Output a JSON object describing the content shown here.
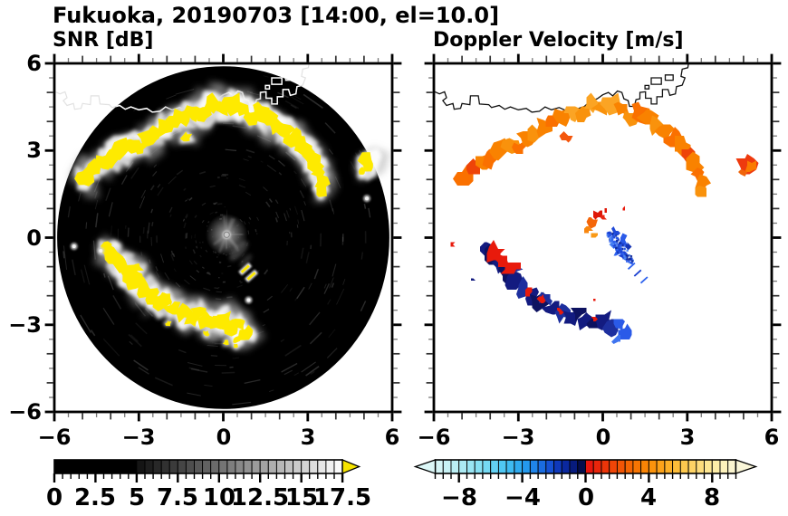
{
  "title": "Fukuoka, 20190703 [14:00, el=10.0]",
  "panels": {
    "snr": {
      "subtitle": "SNR [dB]",
      "x_tick_labels": [
        "−6",
        "−3",
        "0",
        "3",
        "6"
      ],
      "y_tick_labels": [
        "6",
        "3",
        "0",
        "−3",
        "−6"
      ],
      "colorbar_labels": [
        "0",
        "2.5",
        "5",
        "7.5",
        "10",
        "12.5",
        "15",
        "17.5"
      ]
    },
    "vel": {
      "subtitle": "Doppler Velocity [m/s]",
      "x_tick_labels": [
        "−6",
        "−3",
        "0",
        "3",
        "6"
      ],
      "colorbar_labels": [
        "−8",
        "−4",
        "0",
        "4",
        "8"
      ]
    }
  },
  "chart_data": {
    "type": "heatmap",
    "subtype": "radar-ppi-pair",
    "site": "Fukuoka",
    "date_label": "20190703",
    "time_label": "14:00",
    "elevation_label": "el=10.0",
    "x_range": [
      -6,
      6
    ],
    "y_range": [
      -6,
      6
    ],
    "major_ticks": [
      -6,
      -3,
      0,
      3,
      6
    ],
    "minor_tick_step": 0.5,
    "scan_circle_radius": 5.9,
    "panels": [
      {
        "name": "snr",
        "label": "SNR [dB]",
        "background": "#000000",
        "colorbar": {
          "range": [
            0,
            17.5
          ],
          "cell_step": 0.5,
          "solid_black_until": 5,
          "tick_values": [
            0,
            2.5,
            5,
            7.5,
            10,
            12.5,
            15,
            17.5
          ],
          "ramp": [
            "#101010",
            "#ffffff"
          ],
          "overflow_color": "#f6e400",
          "overflow_side": "right"
        }
      },
      {
        "name": "velocity",
        "label": "Doppler Velocity [m/s]",
        "background": "#ffffff",
        "colorbar": {
          "range": [
            -9.5,
            9.5
          ],
          "cell_step": 0.5,
          "tick_values": [
            -8,
            -4,
            0,
            4,
            8
          ],
          "underflow_color": "#dcf7f7",
          "overflow_color": "#faf6d8",
          "neg_stops": [
            [
              -9.5,
              "#dcf7f7"
            ],
            [
              -8,
              "#b4edf3"
            ],
            [
              -6.5,
              "#7eddf3"
            ],
            [
              -5,
              "#46c3f3"
            ],
            [
              -4,
              "#27a3ef"
            ],
            [
              -3,
              "#1c79e6"
            ],
            [
              -2.2,
              "#144ed2"
            ],
            [
              -1.5,
              "#0c2eae"
            ],
            [
              -0.8,
              "#071c82"
            ],
            [
              -0.3,
              "#040e52"
            ],
            [
              0,
              "#03082e"
            ]
          ],
          "pos_stops": [
            [
              0,
              "#e60e0e"
            ],
            [
              1,
              "#ea2d0a"
            ],
            [
              2,
              "#f04d06"
            ],
            [
              3,
              "#f66d02"
            ],
            [
              4,
              "#fa8b06"
            ],
            [
              5,
              "#fca91f"
            ],
            [
              6,
              "#fdc342"
            ],
            [
              7,
              "#fed870"
            ],
            [
              8,
              "#feec9e"
            ],
            [
              9,
              "#fcf4c6"
            ],
            [
              9.5,
              "#faf6d8"
            ]
          ]
        }
      }
    ],
    "features": {
      "snr_yellow": "#feea00",
      "vel_palette": [
        "#f98200",
        "#fa7000",
        "#f9920c",
        "#f85c04",
        "#fba424",
        "#ee4408"
      ],
      "navy_palette": [
        "#131b80",
        "#0d1260",
        "#1d2f9e",
        "#2443b8",
        "#2a5ae8",
        "#3f74f0"
      ],
      "red": "#e81a0c",
      "upper_arc": [
        [
          -4.95,
          2.05,
          0.3,
          1
        ],
        [
          -4.6,
          2.35,
          0.26,
          5
        ],
        [
          -4.25,
          2.6,
          0.24,
          0
        ],
        [
          -3.95,
          2.75,
          0.3,
          1
        ],
        [
          -3.6,
          3.05,
          0.34,
          0
        ],
        [
          -3.25,
          3.2,
          0.26,
          2
        ],
        [
          -2.95,
          3.1,
          0.22,
          1
        ],
        [
          -2.7,
          3.45,
          0.3,
          0
        ],
        [
          -2.4,
          3.6,
          0.26,
          2
        ],
        [
          -2.1,
          3.8,
          0.3,
          0
        ],
        [
          -1.75,
          4.0,
          0.26,
          1
        ],
        [
          -1.45,
          4.15,
          0.3,
          0
        ],
        [
          -1.1,
          4.35,
          0.26,
          4
        ],
        [
          -0.75,
          4.3,
          0.3,
          2
        ],
        [
          -0.4,
          4.55,
          0.3,
          4
        ],
        [
          -0.05,
          4.5,
          0.26,
          2
        ],
        [
          0.35,
          4.55,
          0.34,
          4
        ],
        [
          0.7,
          4.45,
          0.26,
          0
        ],
        [
          1.0,
          4.15,
          0.22,
          2
        ],
        [
          1.3,
          4.35,
          0.3,
          1
        ],
        [
          1.6,
          4.1,
          0.3,
          0
        ],
        [
          1.9,
          3.85,
          0.26,
          2
        ],
        [
          2.2,
          3.65,
          0.3,
          0
        ],
        [
          2.5,
          3.4,
          0.3,
          1
        ],
        [
          2.8,
          3.15,
          0.3,
          0
        ],
        [
          3.05,
          2.85,
          0.26,
          5
        ],
        [
          3.25,
          2.55,
          0.26,
          0
        ],
        [
          3.4,
          2.2,
          0.22,
          1
        ],
        [
          3.5,
          1.85,
          0.22,
          0
        ],
        [
          3.45,
          1.55,
          0.18,
          2
        ]
      ],
      "isolated": [
        [
          -1.3,
          3.45,
          0.17
        ],
        [
          5.15,
          2.55,
          0.3
        ],
        [
          4.95,
          2.25,
          0.13
        ]
      ],
      "isolated_vel_colors": [
        "#f4560c",
        "#ee3a0e",
        "#f0640a"
      ],
      "lower_arc": [
        [
          -4.1,
          -0.35,
          0.2,
          0
        ],
        [
          -3.9,
          -0.6,
          0.28,
          1
        ],
        [
          -3.65,
          -0.9,
          0.28,
          0
        ],
        [
          -3.4,
          -1.2,
          0.32,
          1
        ],
        [
          -3.1,
          -1.05,
          0.2,
          2
        ],
        [
          -3.15,
          -1.5,
          0.28,
          0
        ],
        [
          -2.85,
          -1.75,
          0.28,
          2
        ],
        [
          -2.55,
          -1.95,
          0.26,
          0
        ],
        [
          -2.3,
          -2.2,
          0.28,
          1
        ],
        [
          -2.0,
          -2.1,
          0.2,
          2
        ],
        [
          -1.75,
          -2.45,
          0.28,
          0
        ],
        [
          -1.45,
          -2.6,
          0.26,
          2
        ],
        [
          -1.15,
          -2.75,
          0.28,
          0
        ],
        [
          -0.85,
          -2.6,
          0.24,
          1
        ],
        [
          -0.55,
          -2.85,
          0.28,
          0
        ],
        [
          -0.25,
          -2.95,
          0.26,
          1
        ],
        [
          0.05,
          -2.85,
          0.28,
          0
        ],
        [
          0.35,
          -3.1,
          0.28,
          2
        ],
        [
          0.6,
          -2.95,
          0.2,
          4
        ],
        [
          0.8,
          -3.3,
          0.26,
          4
        ],
        [
          0.5,
          -3.5,
          0.16,
          5
        ]
      ],
      "lower_arc_red": [
        [
          -3.85,
          -0.5,
          0.3
        ],
        [
          -3.6,
          -0.8,
          0.24
        ],
        [
          -3.35,
          -1.1,
          0.2
        ],
        [
          -3.05,
          -0.95,
          0.12
        ],
        [
          -2.62,
          -1.85,
          0.13
        ],
        [
          -2.2,
          -2.1,
          0.12
        ],
        [
          -1.5,
          -2.52,
          0.1
        ],
        [
          -0.3,
          -2.78,
          0.07
        ]
      ],
      "snr_dots_yellow": [
        [
          -0.6,
          -3.3,
          0.1
        ],
        [
          0.1,
          -3.62,
          0.1
        ],
        [
          -1.95,
          -2.95,
          0.09
        ],
        [
          0.45,
          -3.72,
          0.08
        ]
      ],
      "snr_dots_gray": [
        [
          -5.3,
          -0.3
        ],
        [
          -4.35,
          -0.45
        ],
        [
          0.9,
          -2.15
        ],
        [
          5.1,
          1.35
        ]
      ],
      "snr_dashes": [
        [
          0.78,
          -1.08
        ],
        [
          1.0,
          -1.32
        ]
      ],
      "vel_red_dots": [
        [
          -5.35,
          -0.25,
          0.09
        ],
        [
          -0.29,
          -2.12,
          0.06
        ],
        [
          0.74,
          1.0,
          0.05
        ]
      ],
      "vel_navy_dots": [
        [
          -4.6,
          -1.45,
          0.06
        ]
      ],
      "warm_cluster": [
        [
          -0.2,
          0.8,
          0.13,
          "#df1808"
        ],
        [
          -0.38,
          0.52,
          0.15,
          "#f4660a"
        ],
        [
          -0.52,
          0.28,
          0.13,
          "#f8860e"
        ],
        [
          -0.32,
          0.08,
          0.11,
          "#fa9a16"
        ],
        [
          0.02,
          0.68,
          0.1,
          "#e82410"
        ],
        [
          0.1,
          0.92,
          0.07,
          "#df1808"
        ]
      ],
      "blue_cluster_polys": [
        [
          0.45,
          0.18,
          0.14,
          "#1f49d8"
        ],
        [
          0.7,
          -0.08,
          0.16,
          "#2a5ae8"
        ],
        [
          0.55,
          -0.45,
          0.15,
          "#2f63ee"
        ],
        [
          0.75,
          -0.62,
          0.12,
          "#1a3fd0"
        ],
        [
          0.35,
          -0.25,
          0.1,
          "#4f88f4"
        ],
        [
          0.88,
          -0.3,
          0.09,
          "#1634b4"
        ]
      ],
      "blue_speckle": {
        "cx": 0.58,
        "cy": -0.3,
        "rx": 0.42,
        "ry": 0.6,
        "count": 110,
        "colors": [
          "#1a3fd0",
          "#2f63ee",
          "#4f88f4",
          "#0c2596",
          "#2553e4"
        ]
      },
      "blue_dashes": [
        [
          1.02,
          -0.98
        ],
        [
          1.24,
          -1.22
        ],
        [
          1.47,
          -1.46
        ]
      ],
      "coastline": [
        [
          -6.15,
          5.1
        ],
        [
          -5.8,
          4.95
        ],
        [
          -5.62,
          5.02
        ],
        [
          -5.55,
          4.82
        ],
        [
          -5.68,
          4.72
        ],
        [
          -5.55,
          4.55
        ],
        [
          -5.32,
          4.62
        ],
        [
          -5.28,
          4.42
        ],
        [
          -5.05,
          4.45
        ],
        [
          -5.0,
          4.62
        ],
        [
          -4.72,
          4.58
        ],
        [
          -4.7,
          4.88
        ],
        [
          -4.42,
          4.88
        ],
        [
          -4.38,
          4.6
        ],
        [
          -4.05,
          4.58
        ],
        [
          -3.95,
          4.48
        ],
        [
          -3.68,
          4.55
        ],
        [
          -3.48,
          4.42
        ],
        [
          -3.28,
          4.5
        ],
        [
          -3.0,
          4.4
        ],
        [
          -2.72,
          4.45
        ],
        [
          -2.52,
          4.32
        ],
        [
          -2.25,
          4.35
        ],
        [
          -2.05,
          4.5
        ],
        [
          -1.82,
          4.4
        ],
        [
          -1.55,
          4.48
        ],
        [
          -1.25,
          4.35
        ],
        [
          -0.95,
          4.42
        ],
        [
          -0.65,
          4.52
        ],
        [
          -0.42,
          4.72
        ],
        [
          -0.2,
          4.78
        ],
        [
          0.0,
          4.92
        ],
        [
          0.2,
          5.0
        ],
        [
          0.35,
          4.88
        ],
        [
          0.52,
          5.05
        ],
        [
          0.68,
          5.0
        ],
        [
          0.75,
          4.78
        ],
        [
          0.9,
          4.72
        ],
        [
          0.95,
          4.52
        ],
        [
          1.12,
          4.52
        ],
        [
          1.18,
          4.75
        ],
        [
          1.32,
          4.78
        ],
        [
          1.32,
          5.0
        ],
        [
          1.52,
          5.02
        ],
        [
          1.52,
          4.8
        ],
        [
          1.72,
          4.8
        ],
        [
          1.72,
          4.6
        ],
        [
          1.92,
          4.6
        ],
        [
          1.92,
          4.85
        ],
        [
          2.12,
          4.85
        ],
        [
          2.12,
          5.1
        ],
        [
          2.32,
          5.1
        ],
        [
          2.38,
          4.9
        ],
        [
          2.58,
          4.95
        ],
        [
          2.62,
          5.2
        ],
        [
          2.82,
          5.25
        ],
        [
          2.92,
          5.5
        ],
        [
          2.78,
          5.55
        ],
        [
          2.82,
          5.8
        ],
        [
          3.02,
          5.85
        ],
        [
          3.06,
          6.08
        ]
      ],
      "islands": [
        [
          [
            1.72,
            5.28
          ],
          [
            2.08,
            5.28
          ],
          [
            2.08,
            5.5
          ],
          [
            1.72,
            5.5
          ]
        ],
        [
          [
            2.22,
            5.42
          ],
          [
            2.5,
            5.42
          ],
          [
            2.5,
            5.6
          ],
          [
            2.22,
            5.6
          ]
        ],
        [
          [
            1.5,
            5.12
          ],
          [
            1.64,
            5.12
          ],
          [
            1.64,
            5.24
          ],
          [
            1.5,
            5.24
          ]
        ]
      ]
    }
  }
}
